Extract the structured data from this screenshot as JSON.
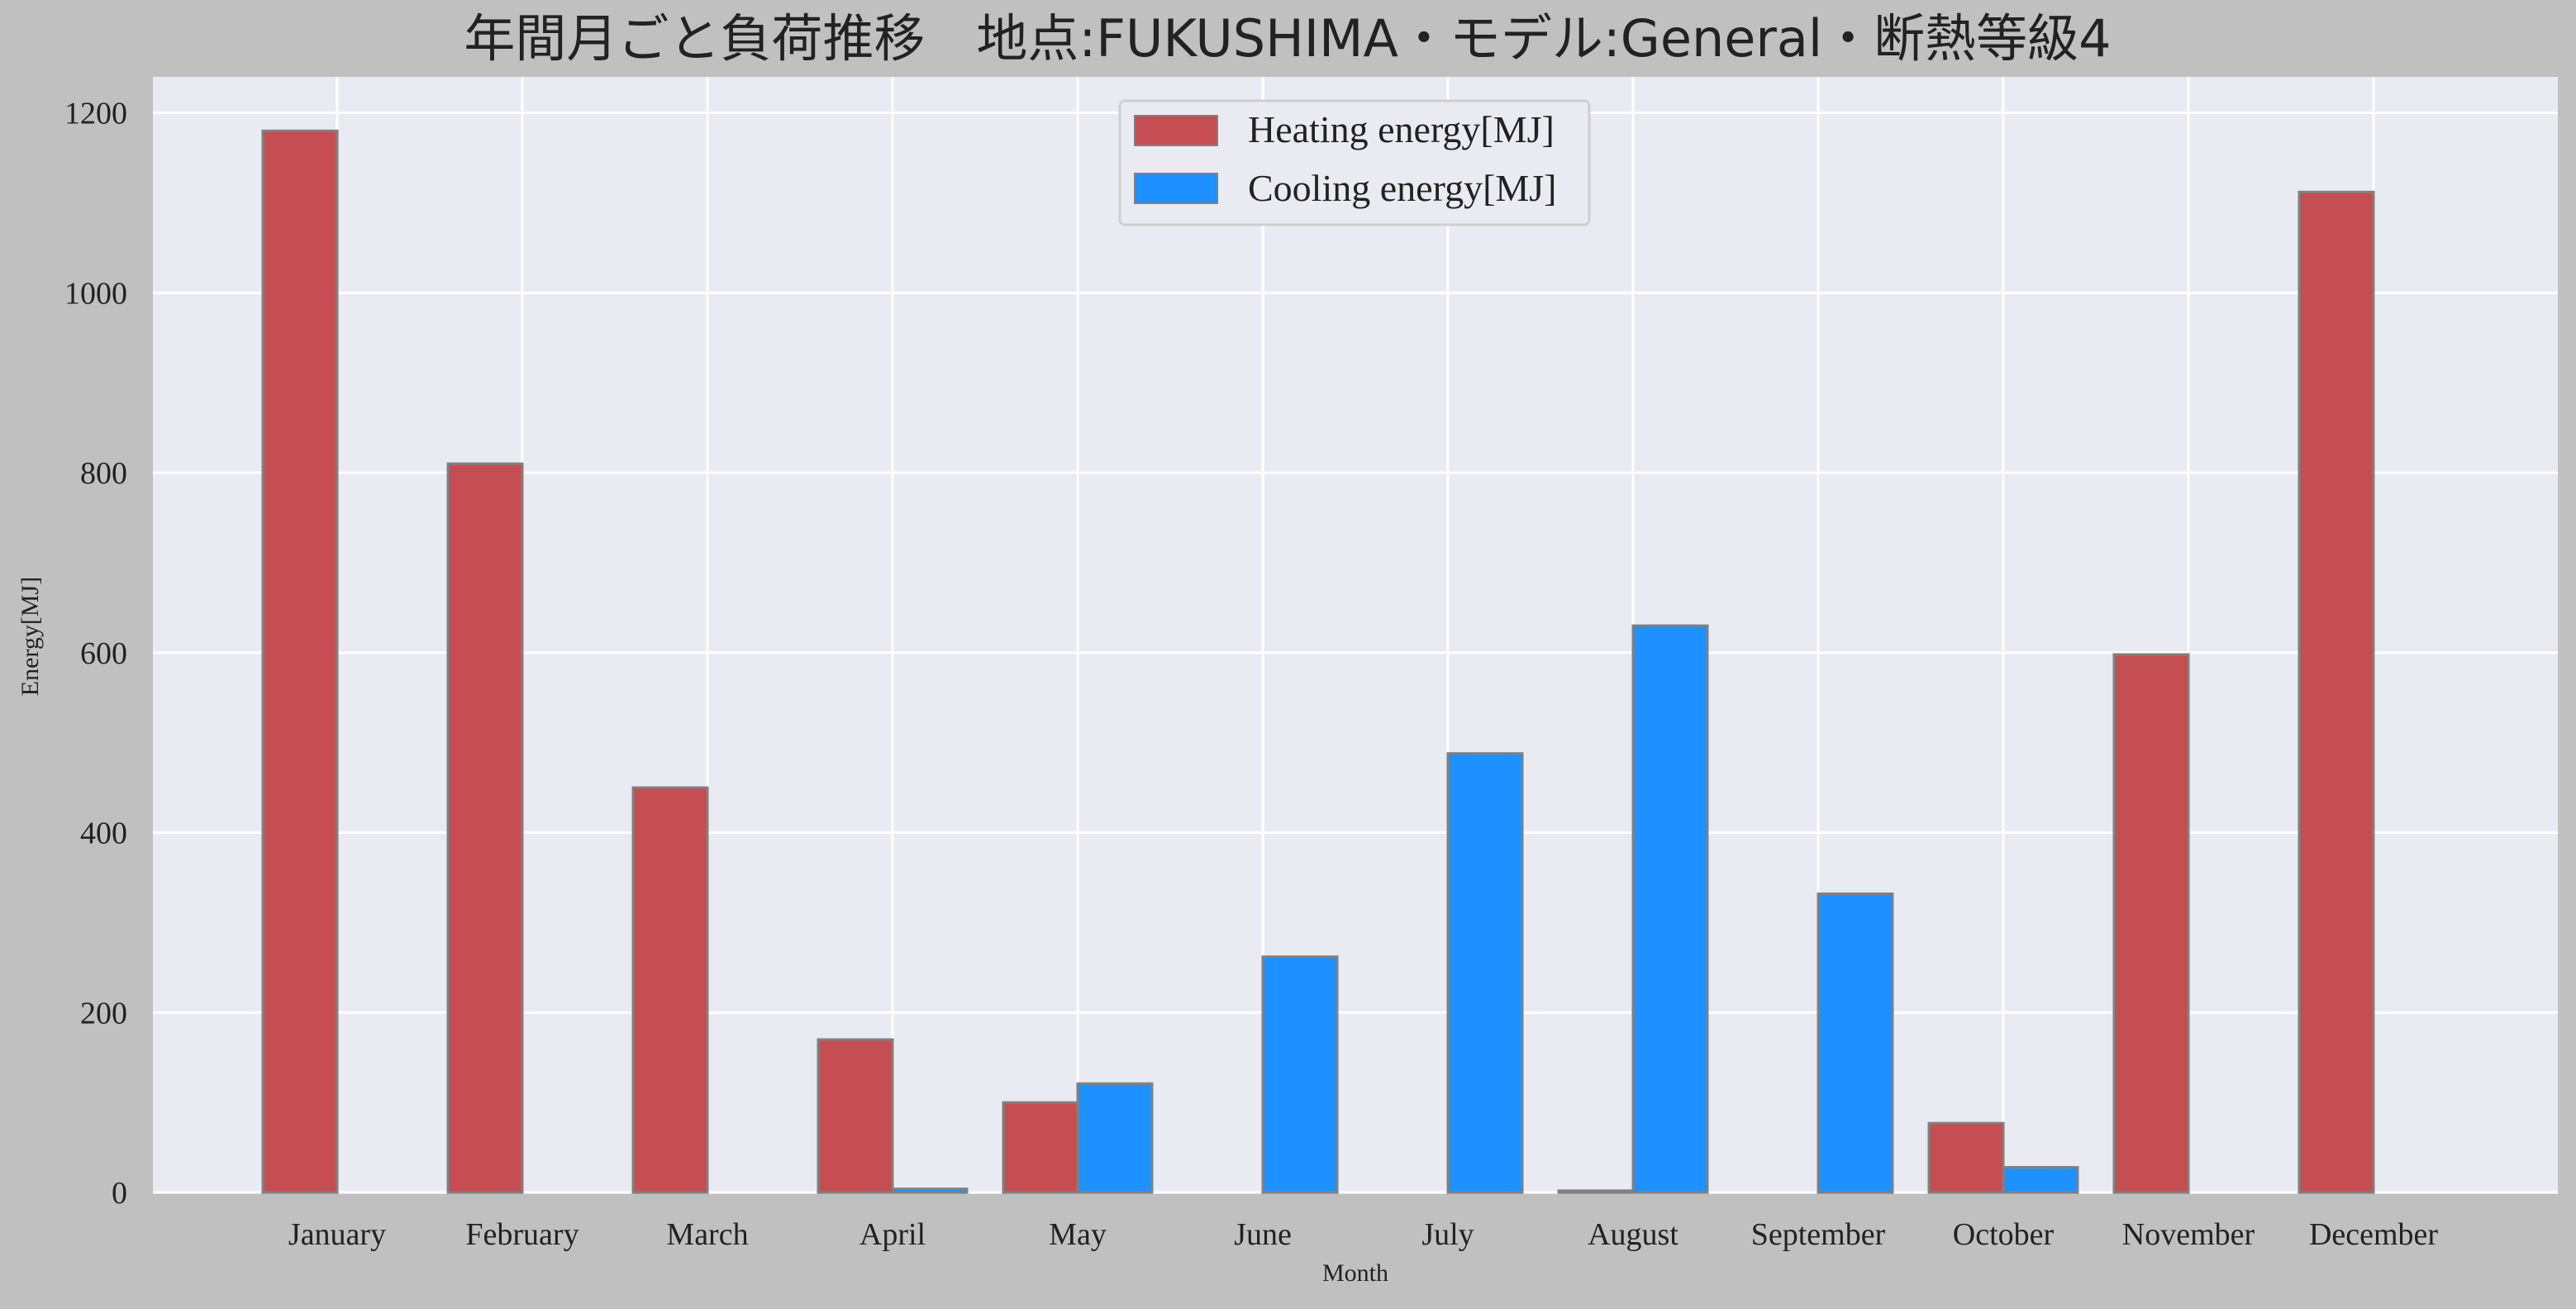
{
  "chart_data": {
    "type": "bar",
    "title": "年間月ごと負荷推移　地点:FUKUSHIMA・モデル:General・断熱等級4",
    "xlabel": "Month",
    "ylabel": "Energy[MJ]",
    "categories": [
      "January",
      "February",
      "March",
      "April",
      "May",
      "June",
      "July",
      "August",
      "September",
      "October",
      "November",
      "December"
    ],
    "series": [
      {
        "name": "Heating energy[MJ]",
        "color": "#c44e52",
        "values": [
          1180,
          810,
          450,
          170,
          100,
          0,
          0,
          2,
          0,
          77,
          598,
          1112
        ]
      },
      {
        "name": "Cooling energy[MJ]",
        "color": "#1e90ff",
        "values": [
          0,
          0,
          0,
          4,
          121,
          262,
          488,
          630,
          332,
          28,
          0,
          0
        ]
      }
    ],
    "ylim": [
      0,
      1240
    ],
    "yticks": [
      0,
      200,
      400,
      600,
      800,
      1000,
      1200
    ],
    "grid": true,
    "legend_position": "top-center",
    "colors": {
      "figure_background": "#c0c0c0",
      "plot_background": "#eaeaf2",
      "grid": "#ffffff",
      "bar_edge": "#808080"
    }
  }
}
